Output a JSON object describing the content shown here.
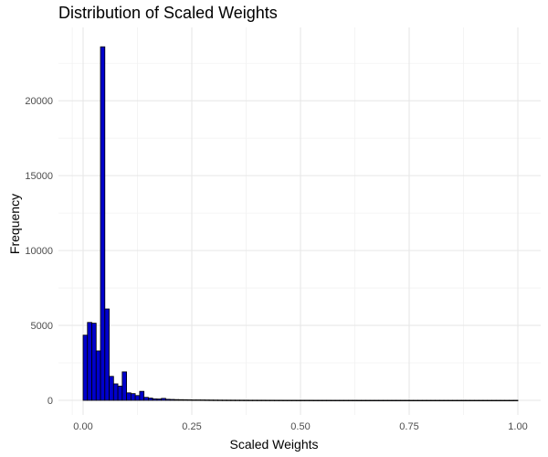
{
  "chart_data": {
    "type": "bar",
    "title": "Distribution of Scaled Weights",
    "xlabel": "Scaled Weights",
    "ylabel": "Frequency",
    "xlim": [
      0,
      1
    ],
    "ylim": [
      0,
      24000
    ],
    "x_ticks": [
      {
        "value": 0,
        "label": "0.00"
      },
      {
        "value": 0.25,
        "label": "0.25"
      },
      {
        "value": 0.5,
        "label": "0.50"
      },
      {
        "value": 0.75,
        "label": "0.75"
      },
      {
        "value": 1.0,
        "label": "1.00"
      }
    ],
    "y_ticks": [
      {
        "value": 0,
        "label": "0"
      },
      {
        "value": 5000,
        "label": "5000"
      },
      {
        "value": 10000,
        "label": "10000"
      },
      {
        "value": 15000,
        "label": "15000"
      },
      {
        "value": 20000,
        "label": "20000"
      }
    ],
    "grid": true,
    "bar_fill": "#0000cc",
    "bar_stroke": "#000000",
    "bin_width": 0.01,
    "bins_start": [
      0.0,
      0.01,
      0.02,
      0.03,
      0.04,
      0.05,
      0.06,
      0.07,
      0.08,
      0.09,
      0.1,
      0.11,
      0.12,
      0.13,
      0.14,
      0.15,
      0.16,
      0.17,
      0.18,
      0.19,
      0.2,
      0.21,
      0.22,
      0.23,
      0.24,
      0.25,
      0.26,
      0.27,
      0.28,
      0.29,
      0.3,
      0.31,
      0.32,
      0.33,
      0.34,
      0.35,
      0.36,
      0.37,
      0.38,
      0.39,
      0.4,
      0.41,
      0.42,
      0.43,
      0.44,
      0.45,
      0.46,
      0.47,
      0.48,
      0.49,
      0.5,
      0.51,
      0.52,
      0.53,
      0.54,
      0.55,
      0.56,
      0.57,
      0.58,
      0.59,
      0.6,
      0.61,
      0.62,
      0.63,
      0.64,
      0.65,
      0.66,
      0.67,
      0.68,
      0.69,
      0.7,
      0.71,
      0.72,
      0.73,
      0.74,
      0.75,
      0.76,
      0.77,
      0.78,
      0.79,
      0.8,
      0.81,
      0.82,
      0.83,
      0.84,
      0.85,
      0.86,
      0.87,
      0.88,
      0.89,
      0.9,
      0.91,
      0.92,
      0.93,
      0.94,
      0.95,
      0.96,
      0.97,
      0.98,
      0.99
    ],
    "values": [
      4350,
      5200,
      5150,
      3300,
      23600,
      6100,
      1600,
      1100,
      950,
      1900,
      500,
      450,
      320,
      600,
      200,
      150,
      100,
      90,
      130,
      70,
      60,
      50,
      45,
      40,
      35,
      30,
      30,
      28,
      25,
      22,
      20,
      18,
      16,
      15,
      14,
      13,
      12,
      11,
      10,
      10,
      9,
      9,
      8,
      8,
      7,
      7,
      6,
      6,
      6,
      5,
      5,
      5,
      5,
      4,
      4,
      4,
      4,
      3,
      3,
      3,
      3,
      3,
      3,
      2,
      2,
      2,
      2,
      2,
      2,
      2,
      2,
      2,
      2,
      2,
      2,
      1,
      1,
      1,
      1,
      1,
      1,
      1,
      1,
      1,
      1,
      1,
      1,
      1,
      1,
      1,
      1,
      1,
      1,
      1,
      1,
      1,
      1,
      1,
      1,
      3
    ]
  }
}
